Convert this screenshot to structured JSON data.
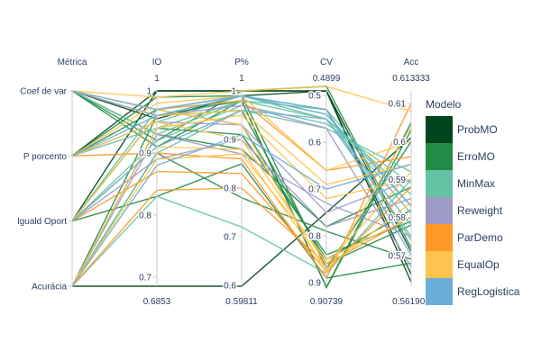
{
  "chart_data": {
    "type": "parallel_coordinates",
    "dimensions": [
      {
        "label": "Métrica",
        "range_top": "",
        "range_bottom": "",
        "ticks": [
          "Coef de var",
          "P porcento",
          "Iguald Oport",
          "Acurácia"
        ]
      },
      {
        "label": "IO",
        "range_top": "1",
        "range_bottom": "0.6853",
        "ticks": [
          "1",
          "0.9",
          "0.8",
          "0.7"
        ]
      },
      {
        "label": "P%",
        "range_top": "1",
        "range_bottom": "0.59811",
        "ticks": [
          "1",
          "0.9",
          "0.8",
          "0.7",
          "0.6"
        ]
      },
      {
        "label": "CV",
        "range_top": "0.4899",
        "range_bottom": "0.90739",
        "ticks": [
          "0.5",
          "0.6",
          "0.7",
          "0.8",
          "0.9"
        ]
      },
      {
        "label": "Acc",
        "range_top": "0.613333",
        "range_bottom": "0.561905",
        "ticks": [
          "0.61",
          "0.6",
          "0.59",
          "0.58",
          "0.57"
        ]
      }
    ],
    "dim_ranges": [
      [
        0,
        3
      ],
      [
        0.6853,
        1
      ],
      [
        0.59811,
        1
      ],
      [
        0.90739,
        0.4899
      ],
      [
        0.561905,
        0.613333
      ]
    ],
    "metric_order": [
      0,
      1,
      2,
      3
    ],
    "legend": {
      "title": "Modelo",
      "entries": [
        {
          "name": "ProbMO",
          "color": "#00441b"
        },
        {
          "name": "ErroMO",
          "color": "#238b45"
        },
        {
          "name": "MinMax",
          "color": "#66c2a4"
        },
        {
          "name": "Reweight",
          "color": "#9e9ac8"
        },
        {
          "name": "ParDemo",
          "color": "#fe9929"
        },
        {
          "name": "EqualOp",
          "color": "#fec44f"
        },
        {
          "name": "RegLogistica",
          "color": "#6baed6"
        }
      ]
    },
    "series": [
      {
        "model": 0,
        "lines": [
          [
            0,
            0.955,
            0.99,
            0.49,
            0.571
          ],
          [
            1,
            1.0,
            1.0,
            0.49,
            0.565
          ],
          [
            2,
            1.0,
            1.0,
            0.49,
            0.563
          ],
          [
            3,
            0.6853,
            0.59811,
            0.75,
            0.601
          ]
        ]
      },
      {
        "model": 1,
        "lines": [
          [
            0,
            0.91,
            0.98,
            0.91,
            0.603
          ],
          [
            1,
            0.97,
            0.93,
            0.85,
            0.582
          ],
          [
            2,
            0.96,
            0.96,
            0.86,
            0.578
          ],
          [
            3,
            0.9,
            0.78,
            0.79,
            0.569
          ],
          [
            0,
            0.93,
            0.88,
            0.78,
            0.588
          ],
          [
            1,
            0.99,
            0.99,
            0.87,
            0.6
          ],
          [
            2,
            0.83,
            0.85,
            0.89,
            0.568
          ],
          [
            3,
            0.94,
            0.91,
            0.84,
            0.579
          ],
          [
            0,
            0.92,
            1.0,
            0.48,
            0.572
          ],
          [
            3,
            0.96,
            0.98,
            0.91,
            0.605
          ]
        ]
      },
      {
        "model": 2,
        "lines": [
          [
            0,
            0.96,
            0.99,
            0.53,
            0.574
          ],
          [
            1,
            0.95,
            0.99,
            0.54,
            0.581
          ],
          [
            2,
            0.97,
            0.99,
            0.55,
            0.586
          ],
          [
            3,
            0.83,
            0.72,
            0.88,
            0.59
          ],
          [
            0,
            0.93,
            0.98,
            0.55,
            0.575
          ],
          [
            1,
            0.94,
            0.98,
            0.53,
            0.583
          ],
          [
            2,
            0.92,
            0.97,
            0.56,
            0.589
          ],
          [
            3,
            0.9,
            0.96,
            0.57,
            0.592
          ]
        ]
      },
      {
        "model": 3,
        "lines": [
          [
            0,
            0.96,
            0.97,
            0.57,
            0.567
          ],
          [
            1,
            0.95,
            0.93,
            0.75,
            0.59
          ],
          [
            2,
            0.89,
            0.9,
            0.78,
            0.585
          ],
          [
            3,
            0.93,
            0.87,
            0.73,
            0.575
          ]
        ]
      },
      {
        "model": 4,
        "lines": [
          [
            0,
            0.97,
            0.98,
            0.66,
            0.596
          ],
          [
            1,
            0.9,
            0.86,
            0.89,
            0.61
          ],
          [
            2,
            0.87,
            0.83,
            0.875,
            0.588
          ],
          [
            3,
            0.84,
            0.8,
            0.86,
            0.58
          ]
        ]
      },
      {
        "model": 5,
        "lines": [
          [
            0,
            0.99,
            1.0,
            0.48,
            0.608
          ],
          [
            1,
            0.98,
            0.99,
            0.66,
            0.6
          ],
          [
            2,
            0.96,
            0.96,
            0.69,
            0.594
          ],
          [
            3,
            0.94,
            0.95,
            0.72,
            0.59
          ],
          [
            0,
            0.97,
            0.93,
            0.88,
            0.604
          ],
          [
            1,
            0.95,
            0.9,
            0.86,
            0.592
          ],
          [
            2,
            0.91,
            0.88,
            0.87,
            0.584
          ],
          [
            3,
            0.89,
            0.87,
            0.85,
            0.58
          ]
        ]
      },
      {
        "model": 6,
        "lines": [
          [
            0,
            0.97,
            0.99,
            0.53,
            0.57
          ],
          [
            1,
            0.96,
            0.99,
            0.54,
            0.583
          ],
          [
            2,
            0.91,
            0.96,
            0.55,
            0.578
          ],
          [
            3,
            0.88,
            0.91,
            0.7,
            0.594
          ]
        ]
      }
    ]
  }
}
